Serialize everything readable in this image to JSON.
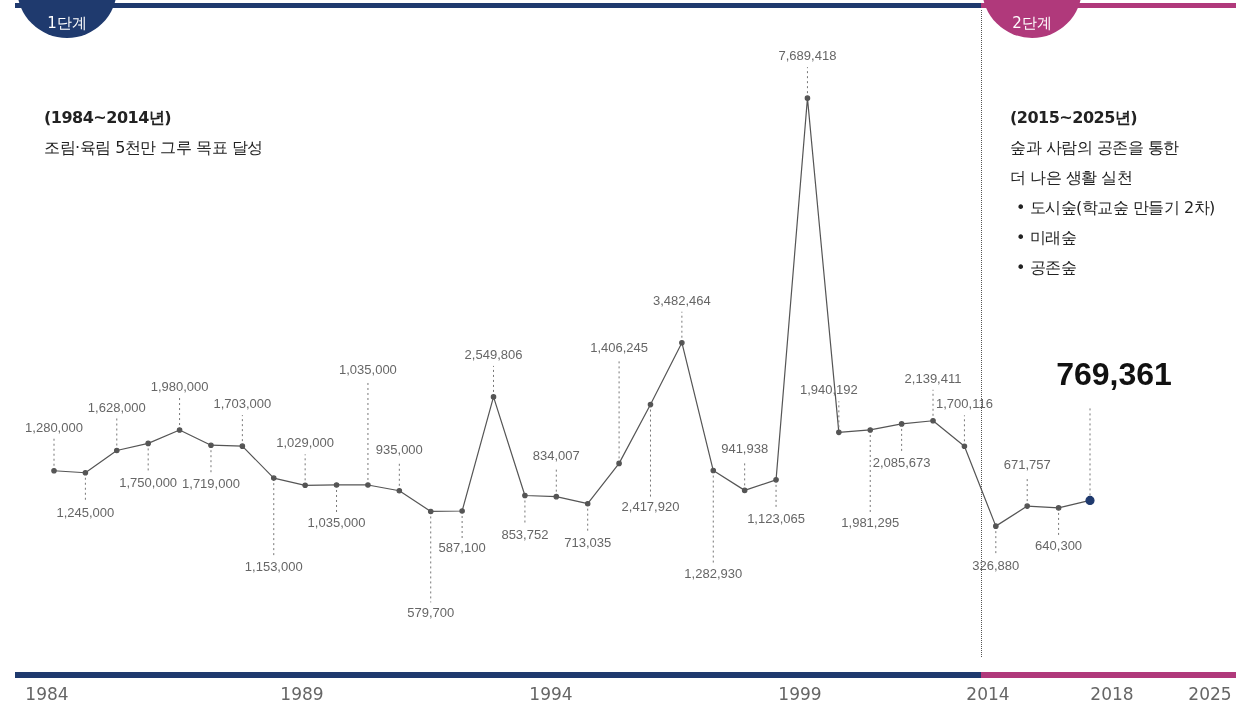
{
  "chart_data": {
    "type": "line",
    "color": "#555555",
    "marker": "circle",
    "value_labels": [
      "1,280,000",
      "1,245,000",
      "1,628,000",
      "1,750,000",
      "1,980,000",
      "1,719,000",
      "1,703,000",
      "1,153,000",
      "1,029,000",
      "1,035,000",
      "1,035,000",
      "935,000",
      "579,700",
      "587,100",
      "2,549,806",
      "853,752",
      "834,007",
      "713,035",
      "1,406,245",
      "2,417,920",
      "3,482,464",
      "1,282,930",
      "941,938",
      "1,123,065",
      "7,689,418",
      "1,940,192",
      "1,981,295",
      "2,085,673",
      "2,139,411",
      "1,700,116",
      "326,880",
      "671,757",
      "640,300",
      "769,361"
    ],
    "tick_labels": false,
    "categories": [
      null,
      null,
      null,
      null,
      null,
      null,
      null,
      null,
      null,
      null,
      null,
      null,
      null,
      null,
      null,
      null,
      null,
      null,
      null,
      null,
      null,
      null,
      null,
      null,
      null,
      null,
      null,
      null,
      null,
      null,
      null,
      null,
      null,
      null
    ],
    "values": [
      1280000,
      1245000,
      1628000,
      1750000,
      1980000,
      1719000,
      1703000,
      1153000,
      1029000,
      1035000,
      1035000,
      935000,
      579700,
      587100,
      2549806,
      853752,
      834007,
      713035,
      1406245,
      2417920,
      3482464,
      1282930,
      941938,
      1123065,
      7689418,
      1940192,
      1981295,
      2085673,
      2139411,
      1700116,
      326880,
      671757,
      640300,
      769361
    ],
    "annotations": [
      "1단계",
      "(1984~2014년)",
      "조림·육림 5천만 그루 목표 달성",
      "2단계",
      "(2015~2025년)",
      "숲과 사람의 공존을 통한",
      "더 나은 생활 실천",
      "• 도시숲(학교숲 만들기 2차)",
      "• 미래숲",
      "• 공존숲",
      "1984",
      "1989",
      "1994",
      "1999",
      "2014",
      "2018",
      "2025"
    ]
  }
}
